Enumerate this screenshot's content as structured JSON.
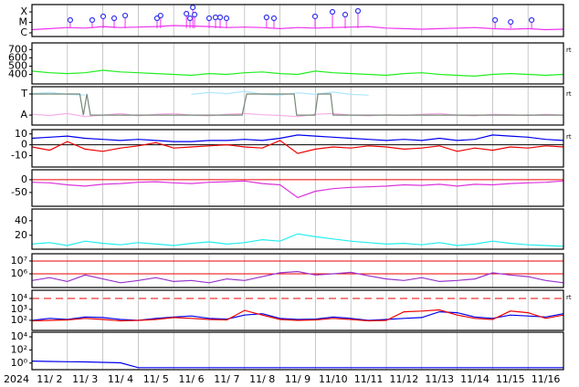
{
  "x_axis": {
    "xlim": [
      0,
      15
    ],
    "xticks": [
      0,
      1,
      2,
      3,
      4,
      5,
      6,
      7,
      8,
      9,
      10,
      11,
      12,
      13,
      14,
      15
    ],
    "year": "2024",
    "labels": [
      "11/ 2",
      "11/ 3",
      "11/ 4",
      "11/ 5",
      "11/ 6",
      "11/ 7",
      "11/ 8",
      "11/ 9",
      "11/10",
      "11/11",
      "11/12",
      "11/13",
      "11/14",
      "11/15",
      "11/16"
    ]
  },
  "chart_data": [
    {
      "type": "scatter",
      "ylim": [
        0.65,
        3.7
      ],
      "yticks": [
        {
          "value": 3,
          "label": "X"
        },
        {
          "value": 2,
          "label": "M"
        },
        {
          "value": 1,
          "label": "C"
        }
      ],
      "x": [
        0,
        0.5,
        1,
        1.5,
        2,
        2.5,
        3,
        3.5,
        4,
        4.5,
        5,
        5.5,
        6,
        6.5,
        7,
        7.5,
        8,
        8.5,
        9,
        9.5,
        10,
        10.5,
        11,
        11.5,
        12,
        12.5,
        13,
        13.5,
        14,
        14.5,
        15
      ],
      "series": [
        {
          "color": "#ee33ee",
          "values": [
            1.3,
            1.4,
            1.5,
            1.45,
            1.6,
            1.5,
            1.55,
            1.6,
            1.7,
            1.65,
            1.6,
            1.5,
            1.55,
            1.5,
            1.4,
            1.5,
            1.45,
            1.5,
            1.55,
            1.6,
            1.45,
            1.4,
            1.35,
            1.4,
            1.45,
            1.5,
            1.4,
            1.35,
            1.4,
            1.3,
            1.35
          ]
        }
      ],
      "events": {
        "color": "#3333ee",
        "stem_color": "#ee33ee",
        "x": [
          1.08,
          1.7,
          2.01,
          2.32,
          2.63,
          3.53,
          3.63,
          4.36,
          4.46,
          4.54,
          4.59,
          5.0,
          5.18,
          5.31,
          5.49,
          6.62,
          6.83,
          7.99,
          8.48,
          8.84,
          9.2,
          13.07,
          13.51,
          14.1
        ],
        "y": [
          2.22,
          2.22,
          2.57,
          2.39,
          2.65,
          2.39,
          2.65,
          2.83,
          2.39,
          3.43,
          2.74,
          2.39,
          2.48,
          2.48,
          2.39,
          2.48,
          2.39,
          2.57,
          3.0,
          2.74,
          3.09,
          2.22,
          2.04,
          2.22
        ]
      }
    },
    {
      "type": "line",
      "ylim": [
        285,
        780
      ],
      "yticks": [
        700,
        600,
        500,
        400
      ],
      "side_label": "rt",
      "x": [
        0,
        0.5,
        1,
        1.5,
        2,
        2.5,
        3,
        3.5,
        4,
        4.5,
        5,
        5.5,
        6,
        6.5,
        7,
        7.5,
        8,
        8.5,
        9,
        9.5,
        10,
        10.5,
        11,
        11.5,
        12,
        12.5,
        13,
        13.5,
        14,
        14.5,
        15
      ],
      "series": [
        {
          "color": "#22ee22",
          "values": [
            440,
            420,
            410,
            420,
            450,
            430,
            420,
            410,
            400,
            390,
            410,
            400,
            420,
            430,
            410,
            400,
            440,
            420,
            410,
            400,
            390,
            410,
            420,
            400,
            390,
            380,
            400,
            410,
            400,
            390,
            400
          ]
        }
      ]
    },
    {
      "type": "line",
      "ylim": [
        0,
        1
      ],
      "yticks": [
        {
          "value": 0.81,
          "label": "T"
        },
        {
          "value": 0.26,
          "label": "A"
        }
      ],
      "side_label": "rt",
      "x": [
        0,
        0.5,
        1,
        1.5,
        2,
        2.5,
        3,
        3.5,
        4,
        4.5,
        5,
        5.5,
        6,
        6.5,
        7,
        7.5,
        8,
        8.5,
        9,
        9.5,
        10,
        10.5,
        11,
        11.5,
        12,
        12.5,
        13,
        13.5,
        14,
        14.5,
        15
      ],
      "series": [
        {
          "color": "#aee6ff",
          "values": [
            0.82,
            0.85,
            0.8,
            0.78,
            null,
            null,
            null,
            null,
            null,
            0.8,
            0.85,
            0.82,
            0.88,
            0.8,
            0.78,
            0.84,
            0.8,
            0.86,
            0.8,
            0.78,
            null,
            null,
            null,
            null,
            null,
            null,
            null,
            null,
            null,
            null,
            null
          ]
        },
        {
          "color": "#f5b0e8",
          "values": [
            0.28,
            0.25,
            0.3,
            0.22,
            0.26,
            0.3,
            0.24,
            0.28,
            0.3,
            0.26,
            0.24,
            0.28,
            0.3,
            0.27,
            0.25,
            0.22,
            0.28,
            0.3,
            0.26,
            0.24,
            0.27,
            0.25,
            0.28,
            0.3,
            0.26,
            0.24,
            0.28,
            0.27,
            0.25,
            0.28,
            0.26
          ]
        },
        {
          "color": "#778877",
          "x": [
            0,
            1.35,
            1.45,
            1.55,
            1.65,
            5.93,
            6.06,
            7.4,
            7.47,
            7.99,
            8.07,
            8.43,
            8.5,
            15
          ],
          "values": [
            0.81,
            0.81,
            0.26,
            0.81,
            0.26,
            0.26,
            0.81,
            0.81,
            0.26,
            0.26,
            0.81,
            0.81,
            0.26,
            0.26
          ]
        }
      ]
    },
    {
      "type": "line",
      "ylim": [
        -20.5,
        14
      ],
      "yticks": [
        10,
        0,
        -10
      ],
      "side_label": "rt",
      "ref_lines": [
        {
          "value": 0,
          "color": "#000000"
        }
      ],
      "x": [
        0,
        0.5,
        1,
        1.5,
        2,
        2.5,
        3,
        3.5,
        4,
        4.5,
        5,
        5.5,
        6,
        6.5,
        7,
        7.5,
        8,
        8.5,
        9,
        9.5,
        10,
        10.5,
        11,
        11.5,
        12,
        12.5,
        13,
        13.5,
        14,
        14.5,
        15
      ],
      "series": [
        {
          "color": "#0000ee",
          "values": [
            6,
            7,
            8,
            6,
            5,
            4,
            5,
            4,
            3,
            3,
            4,
            4,
            5,
            4,
            6,
            9,
            8,
            7,
            6,
            5,
            4,
            5,
            4,
            6,
            4,
            5,
            9,
            8,
            7,
            5,
            4
          ]
        },
        {
          "color": "#ee0000",
          "values": [
            -2,
            -5,
            3,
            -4,
            -6,
            -3,
            -1,
            2,
            -3,
            -2,
            -1,
            0,
            -2,
            -3,
            4,
            -8,
            -4,
            -2,
            -3,
            -1,
            -2,
            -4,
            -3,
            -1,
            -6,
            -3,
            -5,
            -2,
            -3,
            -1,
            -2
          ]
        }
      ]
    },
    {
      "type": "line",
      "ylim": [
        -104,
        39
      ],
      "yticks": [
        0,
        -50
      ],
      "ref_lines": [
        {
          "value": 0,
          "color": "#ee0000"
        }
      ],
      "x": [
        0,
        0.5,
        1,
        1.5,
        2,
        2.5,
        3,
        3.5,
        4,
        4.5,
        5,
        5.5,
        6,
        6.5,
        7,
        7.5,
        8,
        8.5,
        9,
        9.5,
        10,
        10.5,
        11,
        11.5,
        12,
        12.5,
        13,
        13.5,
        14,
        14.5,
        15
      ],
      "series": [
        {
          "color": "#dd33dd",
          "values": [
            -10,
            -12,
            -20,
            -25,
            -18,
            -15,
            -10,
            -8,
            -12,
            -15,
            -10,
            -8,
            -5,
            -15,
            -20,
            -70,
            -45,
            -35,
            -30,
            -28,
            -25,
            -20,
            -22,
            -18,
            -25,
            -18,
            -20,
            -15,
            -12,
            -10,
            -5
          ]
        }
      ]
    },
    {
      "type": "line",
      "ylim": [
        1,
        56
      ],
      "yticks": [
        40,
        20
      ],
      "x": [
        0,
        0.5,
        1,
        1.5,
        2,
        2.5,
        3,
        3.5,
        4,
        4.5,
        5,
        5.5,
        6,
        6.5,
        7,
        7.5,
        8,
        8.5,
        9,
        9.5,
        10,
        10.5,
        11,
        11.5,
        12,
        12.5,
        13,
        13.5,
        14,
        14.5,
        15
      ],
      "series": [
        {
          "color": "#22eeee",
          "values": [
            8,
            10,
            6,
            12,
            9,
            7,
            10,
            8,
            6,
            9,
            11,
            8,
            10,
            14,
            12,
            22,
            18,
            15,
            12,
            10,
            8,
            9,
            7,
            10,
            6,
            8,
            12,
            9,
            7,
            6,
            5
          ]
        }
      ]
    },
    {
      "type": "line",
      "log": true,
      "ylim": [
        85000,
        37000000
      ],
      "yticks": [
        {
          "value": 10000000,
          "label": "10⁷"
        },
        {
          "value": 1000000,
          "label": "10⁶"
        }
      ],
      "ref_lines": [
        {
          "value": 10000000,
          "color": "#ee0000"
        },
        {
          "value": 1000000,
          "color": "#ee0000"
        }
      ],
      "x": [
        0,
        0.5,
        1,
        1.5,
        2,
        2.5,
        3,
        3.5,
        4,
        4.5,
        5,
        5.5,
        6,
        6.5,
        7,
        7.5,
        8,
        8.5,
        9,
        9.5,
        10,
        10.5,
        11,
        11.5,
        12,
        12.5,
        13,
        13.5,
        14,
        14.5,
        15
      ],
      "series": [
        {
          "color": "#9933cc",
          "values": [
            300000,
            500000,
            250000,
            800000,
            400000,
            200000,
            300000,
            500000,
            250000,
            300000,
            200000,
            400000,
            300000,
            600000,
            1200000,
            1500000,
            800000,
            1000000,
            1300000,
            700000,
            400000,
            300000,
            500000,
            250000,
            300000,
            400000,
            1200000,
            800000,
            600000,
            300000,
            200000
          ]
        }
      ]
    },
    {
      "type": "line",
      "log": true,
      "ylim": [
        12,
        56000
      ],
      "side_label": "rt",
      "yticks": [
        {
          "value": 10000,
          "label": "10⁴"
        },
        {
          "value": 1000,
          "label": "10³"
        },
        {
          "value": 100,
          "label": "10²"
        }
      ],
      "ref_lines": [
        {
          "value": 10000,
          "color": "#ee0000",
          "dash": true
        }
      ],
      "x": [
        0,
        0.5,
        1,
        1.5,
        2,
        2.5,
        3,
        3.5,
        4,
        4.5,
        5,
        5.5,
        6,
        6.5,
        7,
        7.5,
        8,
        8.5,
        9,
        9.5,
        10,
        10.5,
        11,
        11.5,
        12,
        12.5,
        13,
        13.5,
        14,
        14.5,
        15
      ],
      "series": [
        {
          "color": "#0000ee",
          "values": [
            100,
            150,
            120,
            200,
            180,
            120,
            100,
            150,
            200,
            250,
            150,
            130,
            300,
            400,
            150,
            120,
            130,
            200,
            150,
            100,
            120,
            150,
            180,
            600,
            500,
            200,
            150,
            300,
            250,
            200,
            400
          ]
        },
        {
          "color": "#ee0000",
          "values": [
            90,
            100,
            110,
            150,
            120,
            90,
            100,
            120,
            180,
            150,
            120,
            110,
            800,
            300,
            120,
            100,
            110,
            150,
            120,
            90,
            100,
            600,
            700,
            900,
            300,
            150,
            120,
            700,
            500,
            150,
            300
          ]
        }
      ]
    },
    {
      "type": "line",
      "log": true,
      "ylim": [
        0.1,
        50000
      ],
      "yticks": [
        {
          "value": 10000,
          "label": "10⁴"
        },
        {
          "value": 100,
          "label": "10²"
        },
        {
          "value": 1,
          "label": "10⁰"
        }
      ],
      "x": [
        0,
        0.5,
        1,
        1.5,
        2,
        2.5,
        3,
        3.5,
        4,
        4.5,
        5,
        5.5,
        6,
        6.5,
        7,
        7.5,
        8,
        8.5,
        9,
        9.5,
        10,
        10.5,
        11,
        11.5,
        12,
        12.5,
        13,
        13.5,
        14,
        14.5,
        15
      ],
      "series": [
        {
          "color": "#0000ee",
          "values": [
            2,
            1.8,
            1.6,
            1.5,
            1.3,
            1.1,
            0.2,
            0.2,
            0.2,
            0.2,
            0.2,
            0.2,
            0.2,
            0.2,
            0.2,
            0.2,
            0.2,
            0.2,
            0.2,
            0.2,
            0.2,
            0.2,
            0.2,
            0.2,
            0.2,
            0.2,
            0.2,
            0.2,
            0.2,
            0.2,
            0.2
          ]
        }
      ]
    }
  ]
}
